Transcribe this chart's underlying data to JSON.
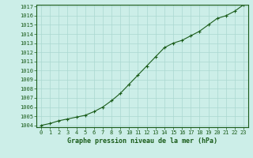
{
  "x": [
    0,
    1,
    2,
    3,
    4,
    5,
    6,
    7,
    8,
    9,
    10,
    11,
    12,
    13,
    14,
    15,
    16,
    17,
    18,
    19,
    20,
    21,
    22,
    23
  ],
  "y": [
    1004.0,
    1004.2,
    1004.5,
    1004.7,
    1004.9,
    1005.1,
    1005.5,
    1006.0,
    1006.7,
    1007.5,
    1008.5,
    1009.5,
    1010.5,
    1011.5,
    1012.5,
    1013.0,
    1013.3,
    1013.8,
    1014.3,
    1015.0,
    1015.7,
    1016.0,
    1016.5,
    1017.2
  ],
  "ylim_min": 1004,
  "ylim_max": 1017,
  "xlim_min": 0,
  "xlim_max": 23,
  "yticks": [
    1004,
    1005,
    1006,
    1007,
    1008,
    1009,
    1010,
    1011,
    1012,
    1013,
    1014,
    1015,
    1016,
    1017
  ],
  "xticks": [
    0,
    1,
    2,
    3,
    4,
    5,
    6,
    7,
    8,
    9,
    10,
    11,
    12,
    13,
    14,
    15,
    16,
    17,
    18,
    19,
    20,
    21,
    22,
    23
  ],
  "line_color": "#1a5c1a",
  "marker": "+",
  "bg_color": "#cceee8",
  "grid_color": "#aad8d0",
  "xlabel": "Graphe pression niveau de la mer (hPa)",
  "xlabel_color": "#1a5c1a",
  "tick_color": "#1a5c1a",
  "tick_fontsize": 5.0,
  "xlabel_fontsize": 6.0,
  "line_width": 0.8,
  "marker_size": 3.5,
  "spine_color": "#1a5c1a"
}
